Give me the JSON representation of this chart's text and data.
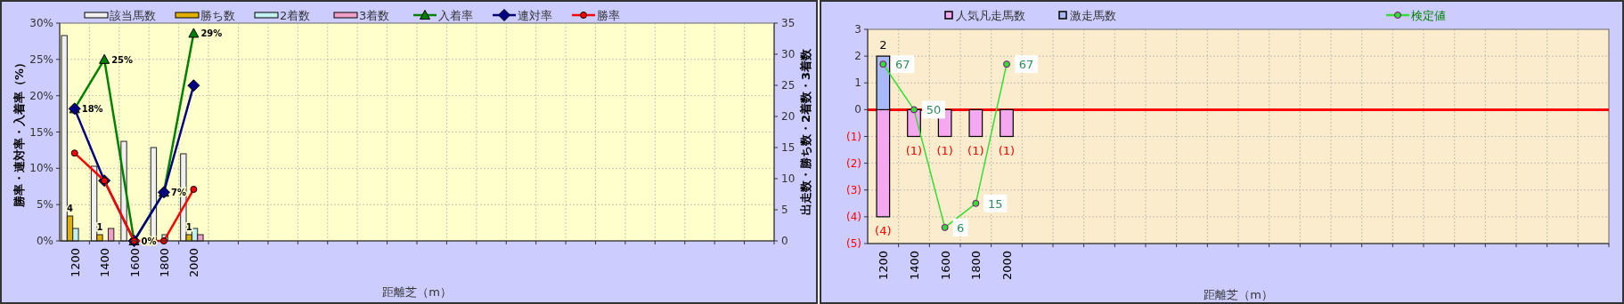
{
  "chart_data": [
    {
      "type": "bar",
      "xlabel": "距離芝（m）",
      "ylabel": "勝率・連対率・入着率（%）",
      "y2label": "出走数・勝ち数・2着数・3着数",
      "legend": "top",
      "grid": true,
      "categories": [
        "1200",
        "1400",
        "1600",
        "1800",
        "2000",
        null,
        null,
        null,
        null,
        null,
        null,
        null,
        null,
        null,
        null,
        null,
        null,
        null,
        null,
        null,
        null,
        null,
        null,
        null
      ],
      "ylim": [
        0,
        30
      ],
      "yticks": [
        {
          "value": 0,
          "label": "0%"
        },
        {
          "value": 5,
          "label": "5%"
        },
        {
          "value": 10,
          "label": "10%"
        },
        {
          "value": 15,
          "label": "15%"
        },
        {
          "value": 20,
          "label": "20%"
        },
        {
          "value": 25,
          "label": "25%"
        },
        {
          "value": 30,
          "label": "30%"
        }
      ],
      "y2lim": [
        0,
        35
      ],
      "y2ticks": [
        0,
        5,
        10,
        15,
        20,
        25,
        30,
        35
      ],
      "series": [
        {
          "name": "該当馬数",
          "axis": "y2",
          "color": "#f0f0f0",
          "values": [
            33,
            12,
            16,
            15,
            14,
            null,
            null,
            null,
            null,
            null,
            null,
            null,
            null,
            null,
            null,
            null,
            null,
            null,
            null,
            null,
            null,
            null,
            null,
            null
          ]
        },
        {
          "name": "勝ち数",
          "axis": "y2",
          "color": "#e0b000",
          "values": [
            4,
            1,
            0,
            0,
            1,
            null,
            null,
            null,
            null,
            null,
            null,
            null,
            null,
            null,
            null,
            null,
            null,
            null,
            null,
            null,
            null,
            null,
            null,
            null
          ],
          "value_labels": [
            "4",
            "1",
            null,
            null,
            "1",
            null,
            null,
            null,
            null,
            null,
            null,
            null,
            null,
            null,
            null,
            null,
            null,
            null,
            null,
            null,
            null,
            null,
            null,
            null
          ]
        },
        {
          "name": "2着数",
          "axis": "y2",
          "color": "#c0f0f0",
          "values": [
            2,
            0,
            0,
            1,
            2,
            null,
            null,
            null,
            null,
            null,
            null,
            null,
            null,
            null,
            null,
            null,
            null,
            null,
            null,
            null,
            null,
            null,
            null,
            null
          ]
        },
        {
          "name": "3着数",
          "axis": "y2",
          "color": "#f0a0c8",
          "values": [
            0,
            2,
            0,
            0,
            1,
            null,
            null,
            null,
            null,
            null,
            null,
            null,
            null,
            null,
            null,
            null,
            null,
            null,
            null,
            null,
            null,
            null,
            null,
            null
          ]
        },
        {
          "name": "入着率",
          "type": "line",
          "color": "#008000",
          "marker": "triangle",
          "values": [
            18.2,
            25,
            0,
            6.7,
            28.6,
            null,
            null,
            null,
            null,
            null,
            null,
            null,
            null,
            null,
            null,
            null,
            null,
            null,
            null,
            null,
            null,
            null,
            null,
            null
          ],
          "value_labels": [
            "18%",
            "25%",
            "0%",
            "7%",
            "29%",
            null,
            null,
            null,
            null,
            null,
            null,
            null,
            null,
            null,
            null,
            null,
            null,
            null,
            null,
            null,
            null,
            null,
            null,
            null
          ]
        },
        {
          "name": "連対率",
          "type": "line",
          "color": "#000080",
          "marker": "diamond",
          "values": [
            18.2,
            8.3,
            0,
            6.7,
            21.4,
            null,
            null,
            null,
            null,
            null,
            null,
            null,
            null,
            null,
            null,
            null,
            null,
            null,
            null,
            null,
            null,
            null,
            null,
            null
          ]
        },
        {
          "name": "勝率",
          "type": "line",
          "color": "#ff0000",
          "marker": "circle",
          "values": [
            12.1,
            8.3,
            0,
            0,
            7.1,
            null,
            null,
            null,
            null,
            null,
            null,
            null,
            null,
            null,
            null,
            null,
            null,
            null,
            null,
            null,
            null,
            null,
            null,
            null
          ]
        }
      ]
    },
    {
      "type": "bar",
      "stacked": true,
      "xlabel": "距離芝（m）",
      "legend": "top",
      "grid": true,
      "categories": [
        "1200",
        "1400",
        "1600",
        "1800",
        "2000",
        null,
        null,
        null,
        null,
        null,
        null,
        null,
        null,
        null,
        null,
        null,
        null,
        null,
        null,
        null,
        null,
        null,
        null,
        null
      ],
      "ylim": [
        -5,
        3
      ],
      "yticks": [
        {
          "value": -5,
          "label": "(5)"
        },
        {
          "value": -4,
          "label": "(4)"
        },
        {
          "value": -3,
          "label": "(3)"
        },
        {
          "value": -2,
          "label": "(2)"
        },
        {
          "value": -1,
          "label": "(1)"
        },
        0,
        1,
        2,
        3
      ],
      "y2lim": [
        0,
        80
      ],
      "ref_lines": [
        {
          "axis": "y",
          "value": 0,
          "color": "#ff0000"
        }
      ],
      "series": [
        {
          "name": "人気凡走馬数",
          "color": "#f4a8f0",
          "values": [
            -4,
            -1,
            -1,
            -1,
            -1,
            null,
            null,
            null,
            null,
            null,
            null,
            null,
            null,
            null,
            null,
            null,
            null,
            null,
            null,
            null,
            null,
            null,
            null,
            null
          ],
          "value_labels": [
            "(4)",
            "(1)",
            "(1)",
            "(1)",
            "(1)",
            null,
            null,
            null,
            null,
            null,
            null,
            null,
            null,
            null,
            null,
            null,
            null,
            null,
            null,
            null,
            null,
            null,
            null,
            null
          ]
        },
        {
          "name": "激走馬数",
          "color": "#a8b8f8",
          "values": [
            2,
            0,
            0,
            0,
            0,
            null,
            null,
            null,
            null,
            null,
            null,
            null,
            null,
            null,
            null,
            null,
            null,
            null,
            null,
            null,
            null,
            null,
            null,
            null
          ],
          "value_labels": [
            "2",
            null,
            null,
            null,
            null,
            null,
            null,
            null,
            null,
            null,
            null,
            null,
            null,
            null,
            null,
            null,
            null,
            null,
            null,
            null,
            null,
            null,
            null,
            null
          ]
        },
        {
          "name": "検定値",
          "type": "line",
          "axis": "y2",
          "color": "#33dd33",
          "marker": "circle",
          "values": [
            67,
            50,
            6,
            15,
            67,
            null,
            null,
            null,
            null,
            null,
            null,
            null,
            null,
            null,
            null,
            null,
            null,
            null,
            null,
            null,
            null,
            null,
            null,
            null
          ],
          "value_labels": [
            "67",
            "50",
            "6",
            "15",
            "67",
            null,
            null,
            null,
            null,
            null,
            null,
            null,
            null,
            null,
            null,
            null,
            null,
            null,
            null,
            null,
            null,
            null,
            null,
            null
          ]
        }
      ]
    }
  ]
}
